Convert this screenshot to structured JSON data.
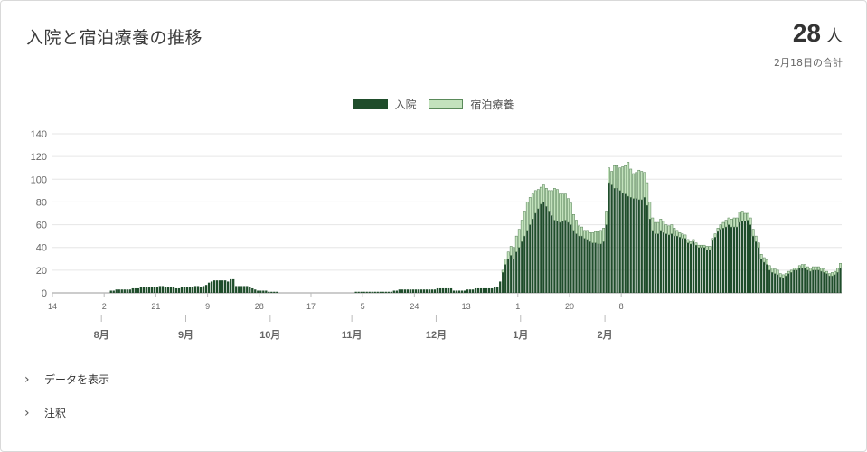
{
  "header": {
    "title": "入院と宿泊療養の推移",
    "total_value": "28",
    "total_unit": "人",
    "total_note": "2月18日の合計"
  },
  "sections": {
    "show_data_label": "データを表示",
    "notes_label": "注釈"
  },
  "colors": {
    "hospital": "#1f4d2b",
    "hotel": "#c3e2bd",
    "grid": "#e6e6e6",
    "axis_text": "#666666"
  },
  "chart_data": {
    "type": "bar",
    "stacked": true,
    "legend_position": "top-center",
    "grid": true,
    "ylim": [
      0,
      140
    ],
    "yticks": [
      0,
      20,
      40,
      60,
      80,
      100,
      120,
      140
    ],
    "day_tick_labels": [
      "14",
      "2",
      "21",
      "9",
      "28",
      "17",
      "5",
      "24",
      "13",
      "1",
      "20",
      "8"
    ],
    "month_labels": [
      "8月",
      "9月",
      "10月",
      "11月",
      "12月",
      "1月",
      "2月"
    ],
    "series": [
      {
        "name": "入院",
        "color": "#1f4d2b",
        "values": [
          0,
          0,
          0,
          0,
          0,
          0,
          0,
          0,
          0,
          0,
          0,
          0,
          0,
          0,
          0,
          0,
          0,
          0,
          0,
          0,
          0,
          2,
          2,
          3,
          3,
          3,
          3,
          3,
          3,
          4,
          4,
          4,
          5,
          5,
          5,
          5,
          5,
          5,
          5,
          6,
          6,
          5,
          5,
          5,
          5,
          4,
          4,
          5,
          5,
          5,
          5,
          5,
          6,
          6,
          5,
          6,
          7,
          9,
          10,
          11,
          11,
          11,
          11,
          11,
          10,
          12,
          12,
          6,
          6,
          6,
          6,
          6,
          5,
          4,
          3,
          2,
          2,
          2,
          2,
          1,
          1,
          1,
          1,
          0,
          0,
          0,
          0,
          0,
          0,
          0,
          0,
          0,
          0,
          0,
          0,
          0,
          0,
          0,
          0,
          0,
          0,
          0,
          0,
          0,
          0,
          0,
          0,
          0,
          0,
          0,
          0,
          1,
          1,
          1,
          1,
          1,
          1,
          1,
          1,
          1,
          1,
          1,
          1,
          1,
          1,
          2,
          2,
          3,
          3,
          3,
          3,
          3,
          3,
          3,
          3,
          3,
          3,
          3,
          3,
          3,
          3,
          4,
          4,
          4,
          4,
          4,
          4,
          2,
          2,
          2,
          2,
          2,
          3,
          3,
          3,
          4,
          4,
          4,
          4,
          4,
          4,
          4,
          5,
          5,
          10,
          18,
          25,
          30,
          33,
          30,
          36,
          40,
          45,
          50,
          55,
          60,
          65,
          70,
          74,
          78,
          80,
          76,
          72,
          68,
          64,
          63,
          62,
          63,
          64,
          62,
          60,
          55,
          52,
          50,
          50,
          48,
          47,
          45,
          44,
          44,
          43,
          43,
          45,
          60,
          97,
          95,
          92,
          92,
          90,
          88,
          87,
          85,
          84,
          83,
          83,
          82,
          82,
          84,
          77,
          65,
          55,
          52,
          52,
          55,
          53,
          52,
          51,
          52,
          50,
          50,
          49,
          48,
          48,
          44,
          43,
          45,
          42,
          40,
          40,
          40,
          38,
          38,
          46,
          49,
          54,
          56,
          57,
          58,
          60,
          58,
          58,
          58,
          62,
          63,
          63,
          64,
          60,
          50,
          45,
          40,
          30,
          27,
          25,
          20,
          18,
          17,
          16,
          14,
          13,
          15,
          17,
          18,
          20,
          20,
          22,
          22,
          22,
          20,
          19,
          20,
          20,
          20,
          19,
          18,
          17,
          15,
          15,
          16,
          18,
          22
        ]
      },
      {
        "name": "宿泊療養",
        "color": "#c3e2bd",
        "values": [
          0,
          0,
          0,
          0,
          0,
          0,
          0,
          0,
          0,
          0,
          0,
          0,
          0,
          0,
          0,
          0,
          0,
          0,
          0,
          0,
          0,
          0,
          0,
          0,
          0,
          0,
          0,
          0,
          0,
          0,
          0,
          0,
          0,
          0,
          0,
          0,
          0,
          0,
          0,
          0,
          0,
          0,
          0,
          0,
          0,
          0,
          0,
          0,
          0,
          0,
          0,
          0,
          0,
          0,
          0,
          0,
          0,
          0,
          0,
          0,
          0,
          0,
          0,
          0,
          0,
          0,
          0,
          0,
          0,
          0,
          0,
          0,
          0,
          0,
          0,
          0,
          0,
          0,
          0,
          0,
          0,
          0,
          0,
          0,
          0,
          0,
          0,
          0,
          0,
          0,
          0,
          0,
          0,
          0,
          0,
          0,
          0,
          0,
          0,
          0,
          0,
          0,
          0,
          0,
          0,
          0,
          0,
          0,
          0,
          0,
          0,
          0,
          0,
          0,
          0,
          0,
          0,
          0,
          0,
          0,
          0,
          0,
          0,
          0,
          0,
          0,
          0,
          0,
          0,
          0,
          0,
          0,
          0,
          0,
          0,
          0,
          0,
          0,
          0,
          0,
          0,
          0,
          0,
          0,
          0,
          0,
          0,
          0,
          0,
          0,
          0,
          0,
          0,
          0,
          0,
          0,
          0,
          0,
          0,
          0,
          0,
          0,
          0,
          0,
          0,
          2,
          5,
          6,
          8,
          10,
          14,
          16,
          19,
          22,
          25,
          24,
          22,
          20,
          17,
          15,
          15,
          16,
          18,
          22,
          28,
          28,
          25,
          24,
          23,
          21,
          19,
          14,
          12,
          9,
          8,
          7,
          8,
          8,
          9,
          10,
          11,
          12,
          12,
          12,
          13,
          12,
          20,
          20,
          20,
          23,
          25,
          30,
          25,
          22,
          23,
          26,
          25,
          22,
          20,
          15,
          11,
          10,
          10,
          10,
          10,
          8,
          8,
          8,
          7,
          5,
          4,
          4,
          3,
          3,
          2,
          2,
          2,
          2,
          2,
          2,
          3,
          3,
          2,
          3,
          3,
          4,
          5,
          6,
          6,
          7,
          8,
          8,
          9,
          9,
          7,
          6,
          6,
          6,
          5,
          4,
          4,
          4,
          4,
          4,
          4,
          4,
          4,
          3,
          3,
          2,
          2,
          2,
          2,
          2,
          2,
          3,
          3,
          3,
          3,
          3,
          3,
          3,
          3,
          3,
          2,
          2,
          3,
          3,
          4,
          4,
          6
        ]
      }
    ]
  }
}
